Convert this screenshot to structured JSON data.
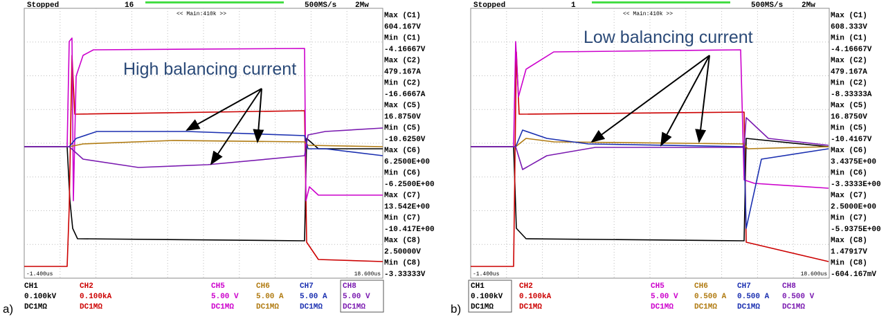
{
  "panels": [
    {
      "label": "a)",
      "status": "Stopped",
      "count": "16",
      "rate": "500MS/s",
      "zoom": "2Mw",
      "timebase": "<< Main:410k >>",
      "start": "-1.400us",
      "end": "18.600us",
      "annotation": "High balancing current",
      "measurements": [
        "Max (C1)",
        "604.167V",
        "Min (C1)",
        "-4.16667V",
        "Max (C2)",
        "479.167A",
        "Min (C2)",
        "-16.6667A",
        "Max (C5)",
        "16.8750V",
        "Min (C5)",
        "-10.6250V",
        "Max (C6)",
        "6.2500E+00",
        "Min (C6)",
        "-6.2500E+00",
        "Max (C7)",
        "13.542E+00",
        "Min (C7)",
        "-10.417E+00",
        "Max (C8)",
        "2.50000V",
        "Min (C8)",
        "-3.33333V"
      ],
      "channels": [
        {
          "name": "CH1",
          "scale": "0.100kV",
          "coupling": "DC1MΩ",
          "color": "#000000"
        },
        {
          "name": "CH2",
          "scale": "0.100kA",
          "coupling": "DC1MΩ",
          "color": "#cc0000"
        },
        {
          "name": "CH5",
          "scale": "5.00 V",
          "coupling": "DC1MΩ",
          "color": "#cc00cc"
        },
        {
          "name": "CH6",
          "scale": "5.00 A",
          "coupling": "DC1MΩ",
          "color": "#b07a10"
        },
        {
          "name": "CH7",
          "scale": "5.00 A",
          "coupling": "DC1MΩ",
          "color": "#1a2fb0"
        },
        {
          "name": "CH8",
          "scale": "5.00 V",
          "coupling": "DC1MΩ",
          "color": "#7a1ab0"
        }
      ]
    },
    {
      "label": "b)",
      "status": "Stopped",
      "count": "1",
      "rate": "500MS/s",
      "zoom": "2Mw",
      "timebase": "<< Main:410k >>",
      "start": "-1.400us",
      "end": "18.600us",
      "annotation": "Low balancing current",
      "measurements": [
        "Max (C1)",
        "608.333V",
        "Min (C1)",
        "-4.16667V",
        "Max (C2)",
        "479.167A",
        "Min (C2)",
        "-8.33333A",
        "Max (C5)",
        "16.8750V",
        "Min (C5)",
        "-10.4167V",
        "Max (C6)",
        "3.4375E+00",
        "Min (C6)",
        "-3.3333E+00",
        "Max (C7)",
        "2.5000E+00",
        "Min (C7)",
        "-5.9375E+00",
        "Max (C8)",
        "1.47917V",
        "Min (C8)",
        "-604.167mV"
      ],
      "channels": [
        {
          "name": "CH1",
          "scale": "0.100kV",
          "coupling": "DC1MΩ",
          "color": "#000000"
        },
        {
          "name": "CH2",
          "scale": "0.100kA",
          "coupling": "DC1MΩ",
          "color": "#cc0000"
        },
        {
          "name": "CH5",
          "scale": "5.00 V",
          "coupling": "DC1MΩ",
          "color": "#cc00cc"
        },
        {
          "name": "CH6",
          "scale": "0.500 A",
          "coupling": "DC1MΩ",
          "color": "#b07a10"
        },
        {
          "name": "CH7",
          "scale": "0.500 A",
          "coupling": "DC1MΩ",
          "color": "#1a2fb0"
        },
        {
          "name": "CH8",
          "scale": "0.500 V",
          "coupling": "DC1MΩ",
          "color": "#7a1ab0"
        }
      ]
    }
  ]
}
